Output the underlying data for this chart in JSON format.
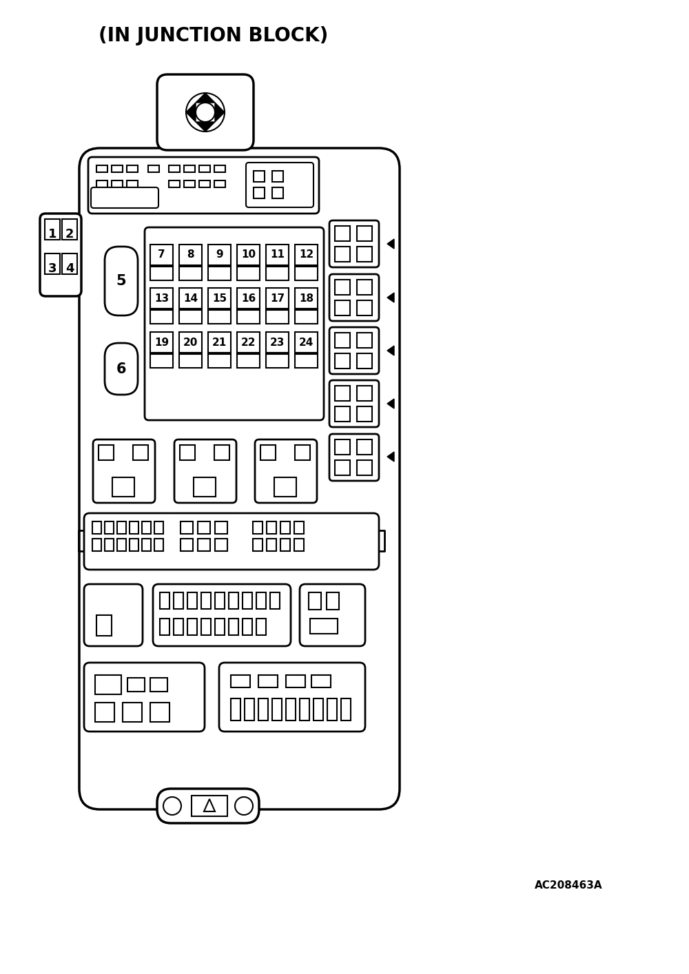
{
  "title": "(IN JUNCTION BLOCK)",
  "title_fontsize": 20,
  "ref_code": "AC208463A",
  "bg_color": "#ffffff",
  "line_color": "#000000",
  "fig_width": 10.0,
  "fig_height": 14.14,
  "dpi": 100,
  "fuse_row1_labels": [
    "7",
    "8",
    "9",
    "10",
    "11",
    "12"
  ],
  "fuse_row2_labels": [
    "13",
    "14",
    "15",
    "16",
    "17",
    "18"
  ],
  "fuse_row3_labels": [
    "19",
    "20",
    "21",
    "22",
    "23",
    "24"
  ]
}
